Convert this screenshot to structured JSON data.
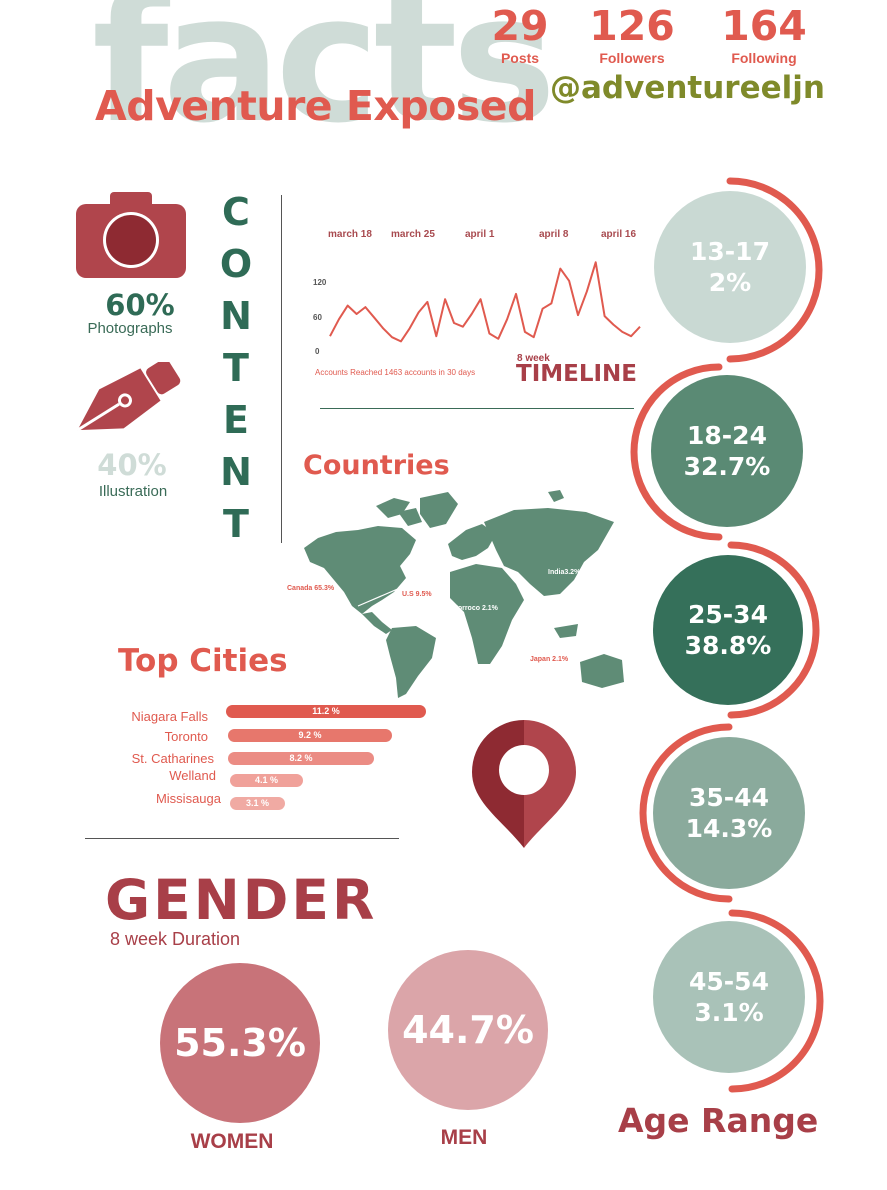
{
  "header": {
    "background_word": "facts",
    "title": "Adventure Exposed",
    "handle": "@adventureeljn"
  },
  "stats": [
    {
      "value": "29",
      "label": "Posts"
    },
    {
      "value": "126",
      "label": "Followers"
    },
    {
      "value": "164",
      "label": "Following"
    }
  ],
  "content": {
    "vertical_label": [
      "C",
      "O",
      "N",
      "T",
      "E",
      "N",
      "T"
    ],
    "photographs": {
      "percent": "60%",
      "label": "Photographs",
      "icon": "camera-icon"
    },
    "illustration": {
      "percent": "40%",
      "label": "Illustration",
      "icon": "pen-nib-icon"
    }
  },
  "timeline": {
    "dates": [
      "march 18",
      "march 25",
      "april 1",
      "april 8",
      "april 16"
    ],
    "y_ticks": [
      "120",
      "60",
      "0"
    ],
    "caption": "Accounts Reached  1463 accounts in 30 days",
    "subtitle": "8 week",
    "title": "TIMELINE",
    "chart_data": {
      "type": "line",
      "ylim": [
        0,
        180
      ],
      "values": [
        30,
        62,
        88,
        72,
        85,
        65,
        45,
        28,
        20,
        45,
        75,
        95,
        30,
        100,
        55,
        48,
        72,
        100,
        35,
        25,
        62,
        110,
        38,
        28,
        82,
        92,
        158,
        135,
        70,
        115,
        170,
        68,
        52,
        38,
        30,
        48
      ]
    }
  },
  "countries": {
    "title": "Countries",
    "labels": [
      {
        "text": "Canada 65.3%",
        "color": "#e05a4f"
      },
      {
        "text": "U.S 9.5%",
        "color": "#e05a4f"
      },
      {
        "text": "Morroco 2.1%",
        "color": "#ffffff"
      },
      {
        "text": "India3.2%",
        "color": "#ffffff"
      },
      {
        "text": "Japan 2.1%",
        "color": "#e05a4f"
      }
    ]
  },
  "top_cities": {
    "title": "Top Cities",
    "cities": [
      {
        "name": "Niagara Falls",
        "percent": "11.2 %",
        "value": 11.2,
        "color": "#e05a4f"
      },
      {
        "name": "Toronto",
        "percent": "9.2 %",
        "value": 9.2,
        "color": "#e7776c"
      },
      {
        "name": "St. Catharines",
        "percent": "8.2 %",
        "value": 8.2,
        "color": "#eb8c84"
      },
      {
        "name": "Welland",
        "percent": "4.1 %",
        "value": 4.1,
        "color": "#f0a19a"
      },
      {
        "name": "Missisauga",
        "percent": "3.1 %",
        "value": 3.1,
        "color": "#f0aaa3"
      }
    ]
  },
  "gender": {
    "title": "GENDER",
    "subtitle": "8 week Duration",
    "women": {
      "percent": "55.3%",
      "label": "WOMEN",
      "color": "#c87379"
    },
    "men": {
      "percent": "44.7%",
      "label": "MEN",
      "color": "#dba5a9"
    }
  },
  "age_range": {
    "title": "Age Range",
    "groups": [
      {
        "range": "13-17",
        "percent": "2%",
        "color": "#c9d9d3"
      },
      {
        "range": "18-24",
        "percent": "32.7%",
        "color": "#5a8a74"
      },
      {
        "range": "25-34",
        "percent": "38.8%",
        "color": "#35705a"
      },
      {
        "range": "35-44",
        "percent": "14.3%",
        "color": "#8aaa9c"
      },
      {
        "range": "45-54",
        "percent": "3.1%",
        "color": "#a9c2b8"
      }
    ]
  }
}
